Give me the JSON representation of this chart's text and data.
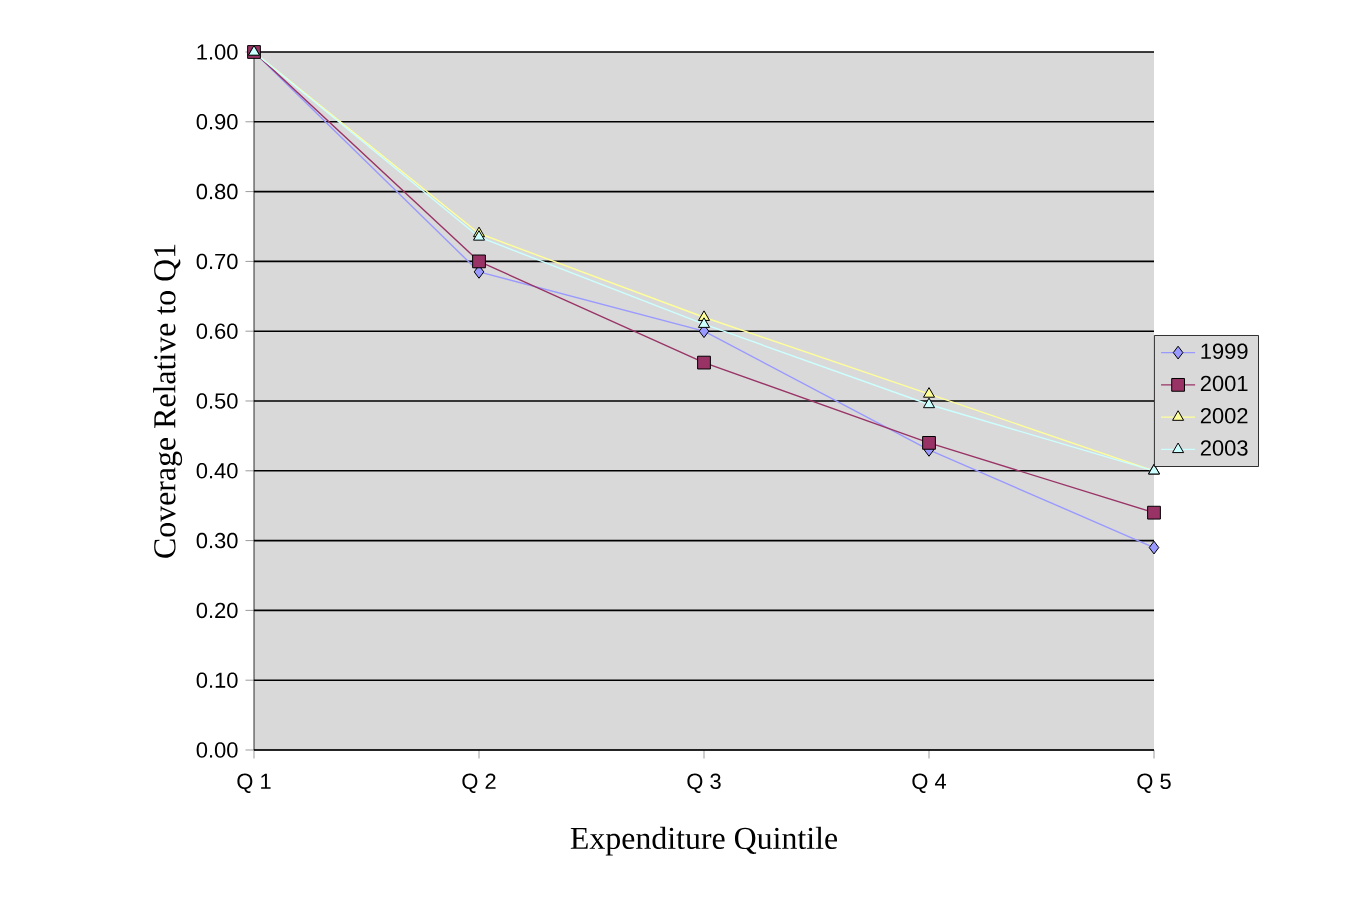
{
  "chart_data": {
    "type": "line",
    "xlabel": "Expenditure Quintile",
    "ylabel": "Coverage Relative to Q1",
    "categories": [
      "Q 1",
      "Q 2",
      "Q 3",
      "Q 4",
      "Q 5"
    ],
    "series": [
      {
        "name": "1999",
        "color": "#9999ff",
        "marker": "diamond",
        "values": [
          1.0,
          0.685,
          0.6,
          0.43,
          0.29
        ]
      },
      {
        "name": "2001",
        "color": "#993366",
        "marker": "square",
        "values": [
          1.0,
          0.7,
          0.555,
          0.44,
          0.34
        ]
      },
      {
        "name": "2002",
        "color": "#ffff99",
        "marker": "triangle",
        "values": [
          1.0,
          0.74,
          0.62,
          0.51,
          0.4
        ]
      },
      {
        "name": "2003",
        "color": "#ccffff",
        "marker": "triangle",
        "values": [
          1.0,
          0.735,
          0.61,
          0.495,
          0.4
        ]
      }
    ],
    "ylim": [
      0,
      1
    ],
    "yticks": [
      {
        "value": 0,
        "label": "0.00"
      },
      {
        "value": 0.1,
        "label": "0.10"
      },
      {
        "value": 0.2,
        "label": "0.20"
      },
      {
        "value": 0.3,
        "label": "0.30"
      },
      {
        "value": 0.4,
        "label": "0.40"
      },
      {
        "value": 0.5,
        "label": "0.50"
      },
      {
        "value": 0.6,
        "label": "0.60"
      },
      {
        "value": 0.7,
        "label": "0.70"
      },
      {
        "value": 0.8,
        "label": "0.80"
      },
      {
        "value": 0.9,
        "label": "0.90"
      },
      {
        "value": 1,
        "label": "1.00"
      }
    ],
    "grid": "y",
    "legend": "right"
  }
}
